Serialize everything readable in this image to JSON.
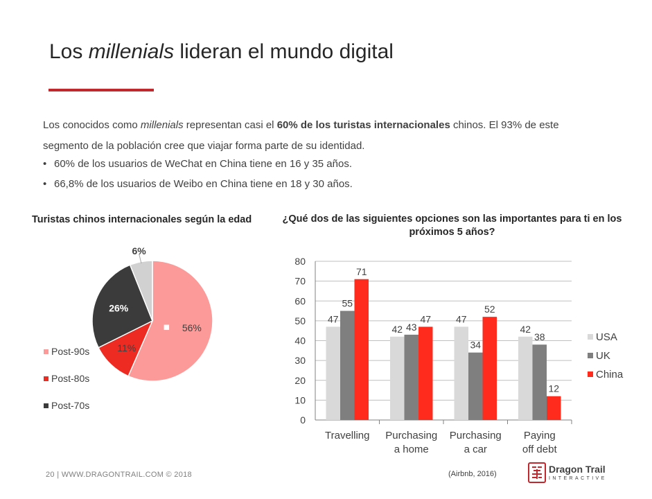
{
  "slide": {
    "title_pre": "Los ",
    "title_em": "millenials",
    "title_post": " lideran el mundo digital",
    "intro_1": "Los conocidos como ",
    "intro_em": "millenials",
    "intro_2": " representan casi el ",
    "intro_bold": "60% de los turistas internacionales",
    "intro_3": " chinos. El 93% de este segmento de la población cree que viajar forma parte de su identidad.",
    "bullet_symbol": "•",
    "bullets": [
      "60% de los usuarios de WeChat en  China tiene en 16 y 35 años.",
      "66,8% de los usuarios de Weibo en  China tiene en 18 y 30 años."
    ],
    "footer": "20  |  WWW.DRAGONTRAIL.COM © 2018",
    "source": "(Airbnb, 2016)",
    "logo_name": "Dragon Trail",
    "logo_sub": "INTERACTIVE",
    "colors": {
      "accent": "#c0282d",
      "post90": "#fb9a98",
      "post80": "#ee2b23",
      "post70": "#3b3b3b",
      "other": "#d1d1d1",
      "usa": "#d9d9d9",
      "uk": "#7f7f7f",
      "china": "#ff2b1c"
    }
  },
  "chart_data": [
    {
      "type": "pie",
      "title": "Turistas chinos internacionales según la edad",
      "slices": [
        {
          "name": "Post-90s",
          "value": 56,
          "label": "56%",
          "color": "#fb9a98"
        },
        {
          "name": "Post-80s",
          "value": 11,
          "label": "11%",
          "color": "#ee2b23"
        },
        {
          "name": "Post-70s",
          "value": 26,
          "label": "26%",
          "color": "#3b3b3b"
        },
        {
          "name": "",
          "value": 6,
          "label": "6%",
          "color": "#d1d1d1"
        }
      ],
      "legend": [
        "Post-90s",
        "Post-80s",
        "Post-70s"
      ],
      "legend_position": "bottom-left"
    },
    {
      "type": "bar",
      "title": "¿Qué dos de las siguientes opciones son las importantes para ti en los próximos 5 años?",
      "categories": [
        "Travelling",
        "Purchasing a home",
        "Purchasing a car",
        "Paying off debt"
      ],
      "series": [
        {
          "name": "USA",
          "values": [
            47,
            42,
            47,
            42
          ],
          "color": "#d9d9d9"
        },
        {
          "name": "UK",
          "values": [
            55,
            43,
            34,
            38
          ],
          "color": "#7f7f7f"
        },
        {
          "name": "China",
          "values": [
            71,
            47,
            52,
            12
          ],
          "color": "#ff2b1c"
        }
      ],
      "yticks": [
        "0",
        "10",
        "20",
        "30",
        "40",
        "50",
        "60",
        "70",
        "80"
      ],
      "ylim": [
        0,
        80
      ],
      "grid": true,
      "legend_position": "right"
    }
  ]
}
